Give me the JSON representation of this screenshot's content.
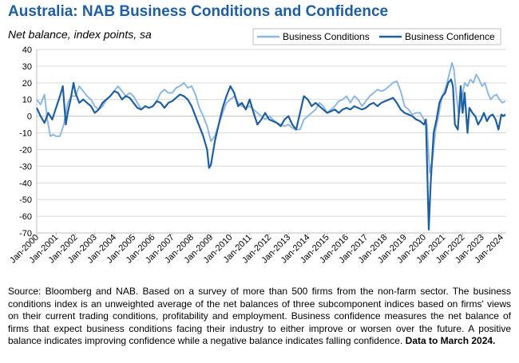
{
  "header": {
    "title": "Australia: NAB Business Conditions and Confidence",
    "subtitle": "Net balance, index points, sa"
  },
  "footer": {
    "source": "Source: Bloomberg and NAB. Based on a survey of more than 500 firms from the non-farm sector.  The business conditions index is an unweighted average of the net balances of three subcomponent indices based on firms' views on their current trading conditions, profitability and employment.  Business confidence measures the net balance of firms that expect business conditions facing their industry to either improve or worsen over the future.  A positive balance indicates improving confidence while a negative balance indicates falling confidence.",
    "note": "Data to March 2024."
  },
  "colors": {
    "title": "#1f5fa0",
    "conditions": "#8fb8e0",
    "confidence": "#1f5fa0",
    "axis": "#bfbfbf",
    "grid": "#d9d9d9"
  },
  "chart_data": {
    "type": "line",
    "title": "Australia: NAB Business Conditions and Confidence",
    "subtitle": "Net balance, index points, sa",
    "ylim": [
      -70,
      40
    ],
    "yticks": [
      40,
      30,
      20,
      10,
      0,
      -10,
      -20,
      -30,
      -40,
      -50,
      -60,
      -70
    ],
    "xlim": [
      2000.0,
      2024.25
    ],
    "xticks": [
      "Jan-2000",
      "Jan-2001",
      "Jan-2002",
      "Jan-2003",
      "Jan-2004",
      "Jan-2005",
      "Jan-2006",
      "Jan-2007",
      "Jan-2008",
      "Jan-2009",
      "Jan-2010",
      "Jan-2011",
      "Jan-2012",
      "Jan-2013",
      "Jan-2014",
      "Jan-2015",
      "Jan-2016",
      "Jan-2017",
      "Jan-2018",
      "Jan-2019",
      "Jan-2020",
      "Jan-2021",
      "Jan-2022",
      "Jan-2023",
      "Jan-2024"
    ],
    "grid": true,
    "legend": "top-right",
    "series": [
      {
        "name": "Business Conditions",
        "color": "#8fb8e0",
        "points": [
          [
            2000.0,
            10
          ],
          [
            2000.2,
            7
          ],
          [
            2000.4,
            13
          ],
          [
            2000.55,
            -2
          ],
          [
            2000.7,
            -12
          ],
          [
            2000.85,
            -11
          ],
          [
            2001.0,
            -12
          ],
          [
            2001.2,
            -12
          ],
          [
            2001.4,
            -5
          ],
          [
            2001.6,
            8
          ],
          [
            2001.8,
            12
          ],
          [
            2002.0,
            12
          ],
          [
            2002.2,
            18
          ],
          [
            2002.4,
            15
          ],
          [
            2002.6,
            12
          ],
          [
            2002.8,
            10
          ],
          [
            2003.0,
            6
          ],
          [
            2003.2,
            4
          ],
          [
            2003.4,
            6
          ],
          [
            2003.6,
            10
          ],
          [
            2003.8,
            12
          ],
          [
            2004.0,
            15
          ],
          [
            2004.2,
            18
          ],
          [
            2004.4,
            15
          ],
          [
            2004.6,
            12
          ],
          [
            2004.8,
            14
          ],
          [
            2005.0,
            12
          ],
          [
            2005.2,
            8
          ],
          [
            2005.4,
            4
          ],
          [
            2005.6,
            6
          ],
          [
            2005.8,
            5
          ],
          [
            2006.0,
            6
          ],
          [
            2006.2,
            9
          ],
          [
            2006.4,
            14
          ],
          [
            2006.6,
            16
          ],
          [
            2006.8,
            14
          ],
          [
            2007.0,
            14
          ],
          [
            2007.2,
            17
          ],
          [
            2007.4,
            18
          ],
          [
            2007.6,
            20
          ],
          [
            2007.8,
            17
          ],
          [
            2008.0,
            18
          ],
          [
            2008.2,
            13
          ],
          [
            2008.4,
            5
          ],
          [
            2008.6,
            0
          ],
          [
            2008.8,
            -6
          ],
          [
            2009.0,
            -15
          ],
          [
            2009.2,
            -12
          ],
          [
            2009.4,
            -5
          ],
          [
            2009.6,
            2
          ],
          [
            2009.8,
            8
          ],
          [
            2010.0,
            10
          ],
          [
            2010.2,
            12
          ],
          [
            2010.4,
            8
          ],
          [
            2010.6,
            6
          ],
          [
            2010.8,
            5
          ],
          [
            2011.0,
            6
          ],
          [
            2011.2,
            4
          ],
          [
            2011.4,
            2
          ],
          [
            2011.6,
            0
          ],
          [
            2011.8,
            -2
          ],
          [
            2012.0,
            0
          ],
          [
            2012.2,
            -2
          ],
          [
            2012.4,
            -4
          ],
          [
            2012.6,
            -5
          ],
          [
            2012.8,
            -6
          ],
          [
            2013.0,
            -5
          ],
          [
            2013.2,
            -7
          ],
          [
            2013.4,
            -8
          ],
          [
            2013.6,
            -8
          ],
          [
            2013.8,
            -2
          ],
          [
            2014.0,
            0
          ],
          [
            2014.2,
            2
          ],
          [
            2014.4,
            4
          ],
          [
            2014.6,
            8
          ],
          [
            2014.8,
            6
          ],
          [
            2015.0,
            2
          ],
          [
            2015.2,
            4
          ],
          [
            2015.4,
            6
          ],
          [
            2015.6,
            9
          ],
          [
            2015.8,
            10
          ],
          [
            2016.0,
            12
          ],
          [
            2016.2,
            8
          ],
          [
            2016.4,
            12
          ],
          [
            2016.6,
            10
          ],
          [
            2016.8,
            6
          ],
          [
            2017.0,
            9
          ],
          [
            2017.2,
            12
          ],
          [
            2017.4,
            14
          ],
          [
            2017.6,
            16
          ],
          [
            2017.8,
            15
          ],
          [
            2018.0,
            16
          ],
          [
            2018.2,
            18
          ],
          [
            2018.4,
            20
          ],
          [
            2018.6,
            21
          ],
          [
            2018.8,
            15
          ],
          [
            2019.0,
            6
          ],
          [
            2019.2,
            4
          ],
          [
            2019.4,
            1
          ],
          [
            2019.6,
            2
          ],
          [
            2019.8,
            2
          ],
          [
            2020.0,
            -2
          ],
          [
            2020.15,
            -5
          ],
          [
            2020.3,
            -34
          ],
          [
            2020.45,
            -25
          ],
          [
            2020.6,
            -8
          ],
          [
            2020.75,
            0
          ],
          [
            2020.9,
            10
          ],
          [
            2021.0,
            13
          ],
          [
            2021.15,
            18
          ],
          [
            2021.3,
            25
          ],
          [
            2021.45,
            32
          ],
          [
            2021.55,
            28
          ],
          [
            2021.7,
            10
          ],
          [
            2021.8,
            0
          ],
          [
            2021.95,
            10
          ],
          [
            2022.1,
            20
          ],
          [
            2022.25,
            18
          ],
          [
            2022.4,
            22
          ],
          [
            2022.55,
            20
          ],
          [
            2022.7,
            25
          ],
          [
            2022.85,
            22
          ],
          [
            2023.0,
            18
          ],
          [
            2023.15,
            20
          ],
          [
            2023.3,
            14
          ],
          [
            2023.45,
            10
          ],
          [
            2023.6,
            12
          ],
          [
            2023.75,
            13
          ],
          [
            2023.9,
            10
          ],
          [
            2024.05,
            8
          ],
          [
            2024.2,
            9
          ]
        ]
      },
      {
        "name": "Business Confidence",
        "color": "#1f5fa0",
        "points": [
          [
            2000.0,
            5
          ],
          [
            2000.2,
            0
          ],
          [
            2000.4,
            -4
          ],
          [
            2000.6,
            2
          ],
          [
            2000.8,
            -2
          ],
          [
            2001.0,
            5
          ],
          [
            2001.2,
            12
          ],
          [
            2001.35,
            18
          ],
          [
            2001.5,
            -5
          ],
          [
            2001.6,
            2
          ],
          [
            2001.75,
            10
          ],
          [
            2001.9,
            20
          ],
          [
            2002.0,
            14
          ],
          [
            2002.2,
            8
          ],
          [
            2002.4,
            10
          ],
          [
            2002.6,
            8
          ],
          [
            2002.8,
            6
          ],
          [
            2003.0,
            2
          ],
          [
            2003.2,
            4
          ],
          [
            2003.4,
            8
          ],
          [
            2003.6,
            10
          ],
          [
            2003.8,
            12
          ],
          [
            2004.0,
            15
          ],
          [
            2004.2,
            14
          ],
          [
            2004.4,
            10
          ],
          [
            2004.6,
            12
          ],
          [
            2004.8,
            11
          ],
          [
            2005.0,
            8
          ],
          [
            2005.2,
            5
          ],
          [
            2005.4,
            4
          ],
          [
            2005.6,
            6
          ],
          [
            2005.8,
            5
          ],
          [
            2006.0,
            6
          ],
          [
            2006.2,
            9
          ],
          [
            2006.4,
            8
          ],
          [
            2006.6,
            5
          ],
          [
            2006.8,
            8
          ],
          [
            2007.0,
            9
          ],
          [
            2007.2,
            11
          ],
          [
            2007.4,
            13
          ],
          [
            2007.6,
            12
          ],
          [
            2007.8,
            10
          ],
          [
            2008.0,
            6
          ],
          [
            2008.2,
            0
          ],
          [
            2008.4,
            -6
          ],
          [
            2008.6,
            -12
          ],
          [
            2008.8,
            -20
          ],
          [
            2008.9,
            -31
          ],
          [
            2009.0,
            -29
          ],
          [
            2009.2,
            -15
          ],
          [
            2009.4,
            -5
          ],
          [
            2009.6,
            5
          ],
          [
            2009.8,
            12
          ],
          [
            2010.0,
            18
          ],
          [
            2010.2,
            14
          ],
          [
            2010.4,
            6
          ],
          [
            2010.6,
            8
          ],
          [
            2010.8,
            4
          ],
          [
            2011.0,
            10
          ],
          [
            2011.2,
            2
          ],
          [
            2011.4,
            -5
          ],
          [
            2011.6,
            -2
          ],
          [
            2011.8,
            2
          ],
          [
            2012.0,
            -2
          ],
          [
            2012.2,
            -3
          ],
          [
            2012.4,
            -4
          ],
          [
            2012.6,
            -6
          ],
          [
            2012.8,
            -2
          ],
          [
            2013.0,
            0
          ],
          [
            2013.2,
            -5
          ],
          [
            2013.4,
            -8
          ],
          [
            2013.6,
            2
          ],
          [
            2013.8,
            12
          ],
          [
            2014.0,
            10
          ],
          [
            2014.2,
            6
          ],
          [
            2014.4,
            8
          ],
          [
            2014.6,
            6
          ],
          [
            2014.8,
            4
          ],
          [
            2015.0,
            2
          ],
          [
            2015.2,
            3
          ],
          [
            2015.4,
            4
          ],
          [
            2015.6,
            2
          ],
          [
            2015.8,
            4
          ],
          [
            2016.0,
            5
          ],
          [
            2016.2,
            4
          ],
          [
            2016.4,
            6
          ],
          [
            2016.6,
            5
          ],
          [
            2016.8,
            4
          ],
          [
            2017.0,
            5
          ],
          [
            2017.2,
            7
          ],
          [
            2017.4,
            8
          ],
          [
            2017.6,
            6
          ],
          [
            2017.8,
            8
          ],
          [
            2018.0,
            9
          ],
          [
            2018.2,
            10
          ],
          [
            2018.4,
            11
          ],
          [
            2018.6,
            8
          ],
          [
            2018.8,
            4
          ],
          [
            2019.0,
            2
          ],
          [
            2019.2,
            1
          ],
          [
            2019.4,
            0
          ],
          [
            2019.6,
            -2
          ],
          [
            2019.8,
            -3
          ],
          [
            2020.0,
            -5
          ],
          [
            2020.1,
            -2
          ],
          [
            2020.25,
            -68
          ],
          [
            2020.35,
            -40
          ],
          [
            2020.5,
            -10
          ],
          [
            2020.65,
            -2
          ],
          [
            2020.8,
            8
          ],
          [
            2020.95,
            12
          ],
          [
            2021.1,
            14
          ],
          [
            2021.25,
            20
          ],
          [
            2021.4,
            22
          ],
          [
            2021.5,
            18
          ],
          [
            2021.6,
            -5
          ],
          [
            2021.75,
            -8
          ],
          [
            2021.9,
            18
          ],
          [
            2022.0,
            2
          ],
          [
            2022.1,
            14
          ],
          [
            2022.25,
            -10
          ],
          [
            2022.35,
            5
          ],
          [
            2022.5,
            2
          ],
          [
            2022.65,
            0
          ],
          [
            2022.8,
            -5
          ],
          [
            2022.95,
            -2
          ],
          [
            2023.1,
            2
          ],
          [
            2023.25,
            -3
          ],
          [
            2023.4,
            0
          ],
          [
            2023.55,
            1
          ],
          [
            2023.7,
            -2
          ],
          [
            2023.85,
            -8
          ],
          [
            2024.0,
            1
          ],
          [
            2024.1,
            0
          ],
          [
            2024.2,
            1
          ]
        ]
      }
    ]
  }
}
